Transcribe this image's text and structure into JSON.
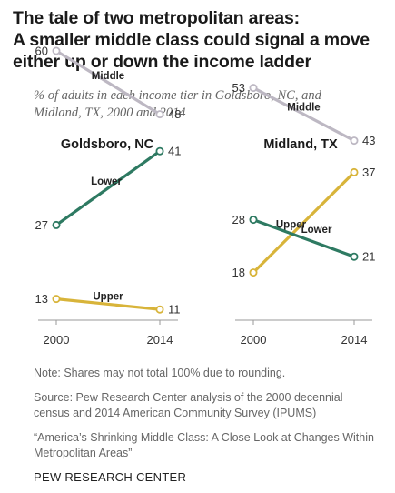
{
  "title": {
    "line1": "The tale of two metropolitan areas:",
    "line2": "A smaller middle class could signal a move",
    "line3": "either up or down the income ladder"
  },
  "subtitle": {
    "line1": "% of adults in each income tier in Goldsboro, NC, and",
    "line2": "Midland, TX, 2000 and 2014"
  },
  "colors": {
    "middle": "#bdb8c3",
    "lower": "#2e7a62",
    "upper": "#d8b43a"
  },
  "chart_data": [
    {
      "type": "line",
      "title": "Goldsboro, NC",
      "x": [
        "2000",
        "2014"
      ],
      "ylim": [
        0,
        70
      ],
      "grid": false,
      "series": [
        {
          "name": "Middle",
          "key": "middle",
          "values": [
            60,
            48
          ]
        },
        {
          "name": "Lower",
          "key": "lower",
          "values": [
            27,
            41
          ]
        },
        {
          "name": "Upper",
          "key": "upper",
          "values": [
            13,
            11
          ]
        }
      ]
    },
    {
      "type": "line",
      "title": "Midland, TX",
      "x": [
        "2000",
        "2014"
      ],
      "ylim": [
        0,
        70
      ],
      "grid": false,
      "series": [
        {
          "name": "Middle",
          "key": "middle",
          "values": [
            53,
            43
          ]
        },
        {
          "name": "Upper",
          "key": "upper",
          "values": [
            18,
            37
          ]
        },
        {
          "name": "Lower",
          "key": "lower",
          "values": [
            28,
            21
          ]
        }
      ]
    }
  ],
  "footer": {
    "note": "Note: Shares may not total 100% due to rounding.",
    "source1": "Source: Pew Research Center analysis of the 2000 decennial",
    "source2": "census and 2014 American Community Survey (IPUMS)",
    "report1": "“America’s Shrinking Middle Class: A Close Look at Changes Within",
    "report2": "Metropolitan Areas”",
    "brand": "PEW RESEARCH CENTER"
  }
}
